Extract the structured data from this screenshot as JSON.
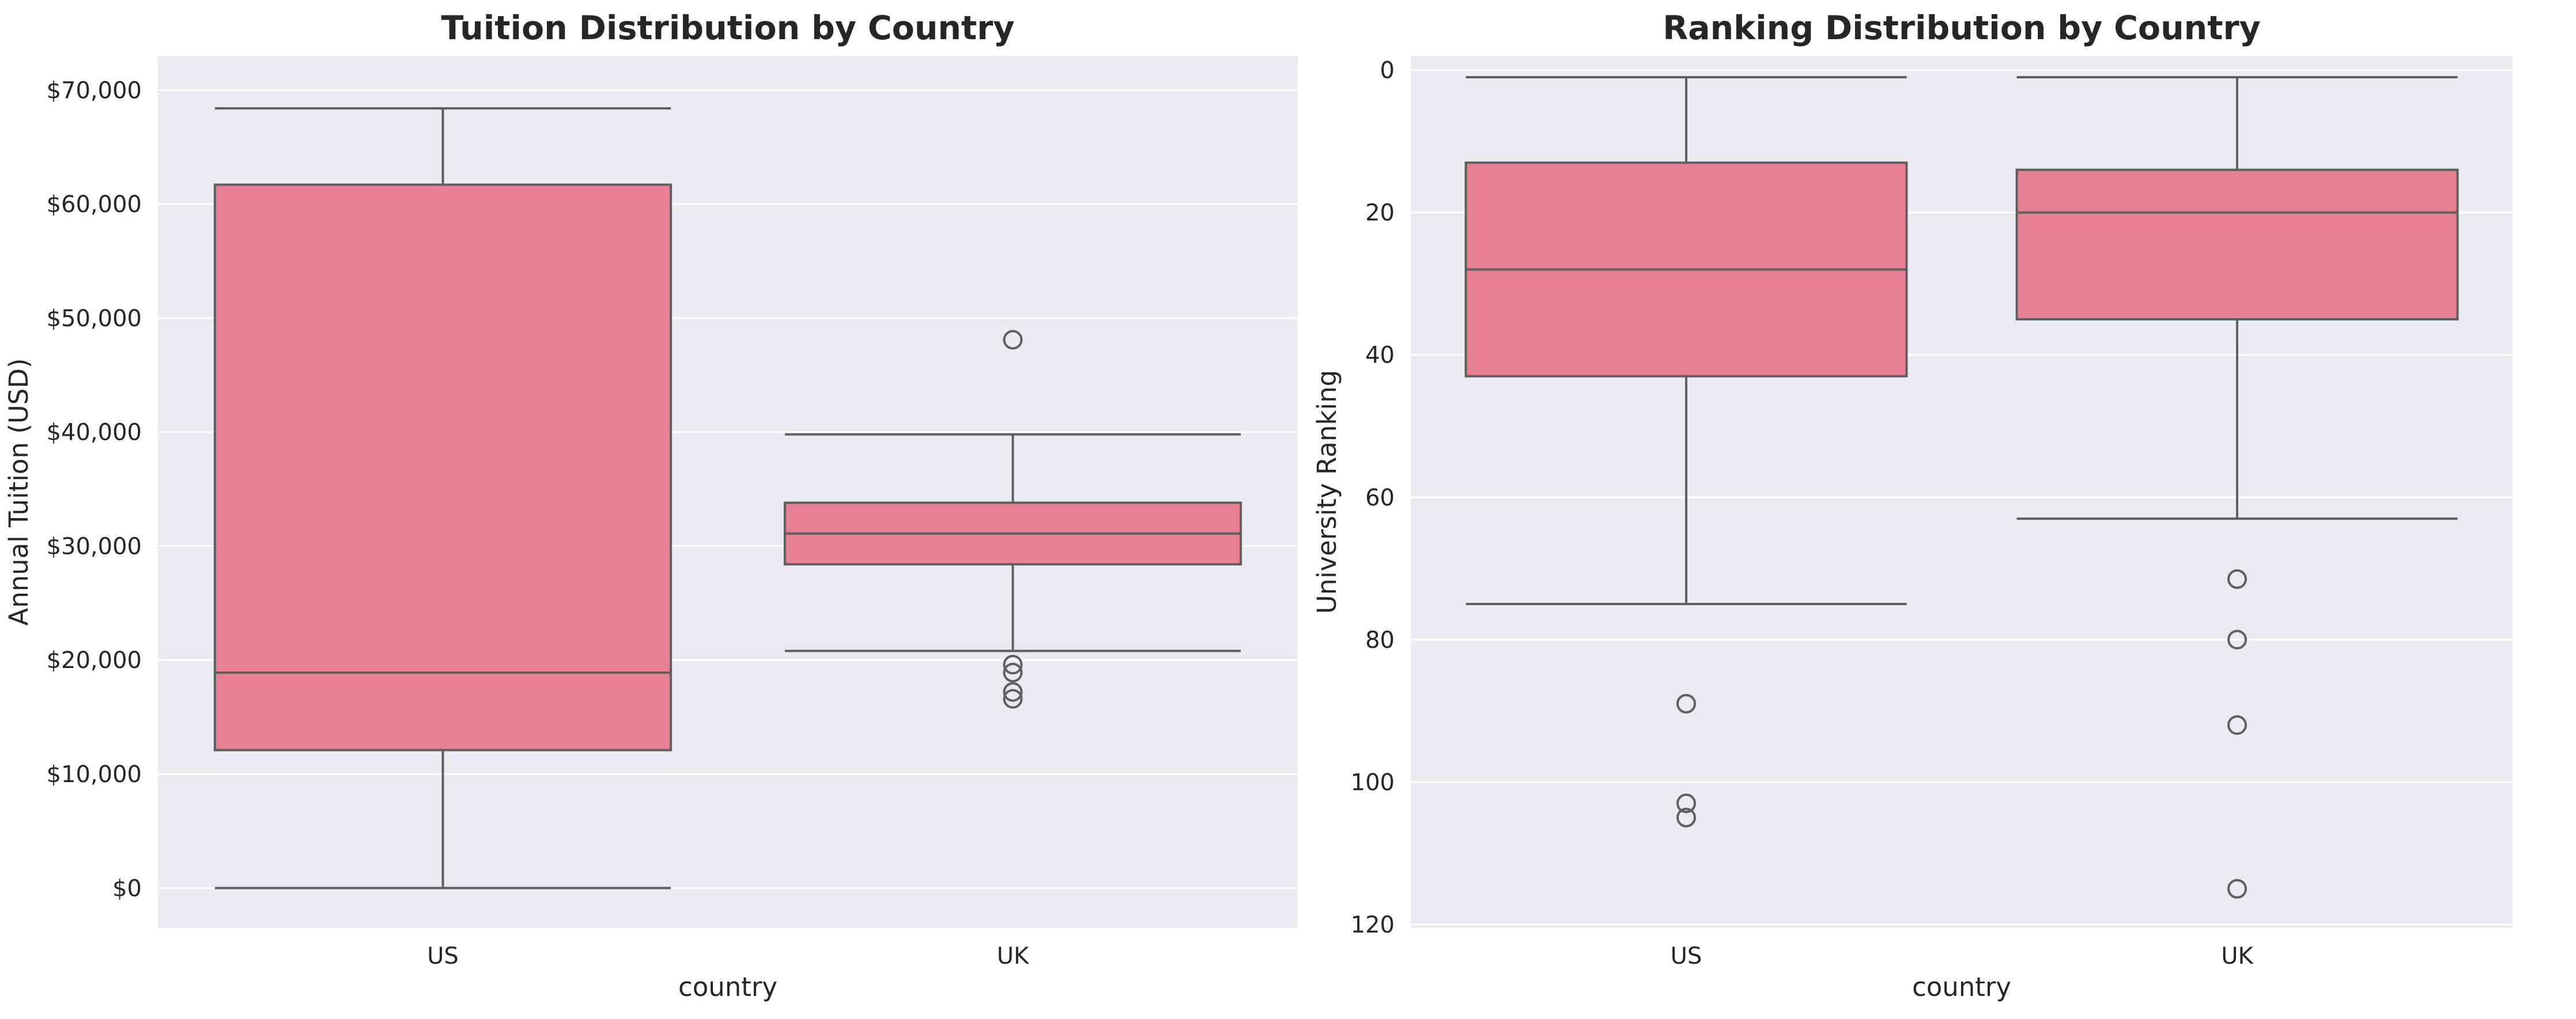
{
  "chart_data": [
    {
      "type": "box",
      "title": "Tuition Distribution by Country",
      "xlabel": "country",
      "ylabel": "Annual Tuition (USD)",
      "categories": [
        "US",
        "UK"
      ],
      "ylim": [
        -3500,
        73000
      ],
      "yticks": [
        0,
        10000,
        20000,
        30000,
        40000,
        50000,
        60000,
        70000
      ],
      "ytick_labels": [
        "$0",
        "$10,000",
        "$20,000",
        "$30,000",
        "$40,000",
        "$50,000",
        "$60,000",
        "$70,000"
      ],
      "inverted": false,
      "grid": true,
      "color": "#e77f92",
      "boxes": [
        {
          "category": "US",
          "whisker_low": 0,
          "q1": 12100,
          "median": 18900,
          "q3": 61700,
          "whisker_high": 68400,
          "outliers": []
        },
        {
          "category": "UK",
          "whisker_low": 20800,
          "q1": 28400,
          "median": 31100,
          "q3": 33800,
          "whisker_high": 39800,
          "outliers": [
            48100,
            19600,
            18900,
            17200,
            16600
          ]
        }
      ]
    },
    {
      "type": "box",
      "title": "Ranking Distribution by Country",
      "xlabel": "country",
      "ylabel": "University Ranking",
      "categories": [
        "US",
        "UK"
      ],
      "ylim": [
        120.5,
        -2
      ],
      "yticks": [
        0,
        20,
        40,
        60,
        80,
        100,
        120
      ],
      "ytick_labels": [
        "0",
        "20",
        "40",
        "60",
        "80",
        "100",
        "120"
      ],
      "inverted": true,
      "grid": true,
      "color": "#e77f92",
      "boxes": [
        {
          "category": "US",
          "whisker_low": 1,
          "q1": 13,
          "median": 28,
          "q3": 43,
          "whisker_high": 75,
          "outliers": [
            89,
            103,
            105
          ]
        },
        {
          "category": "UK",
          "whisker_low": 1,
          "q1": 14,
          "median": 20,
          "q3": 35,
          "whisker_high": 63,
          "outliers": [
            71.5,
            80,
            92,
            115
          ]
        }
      ]
    }
  ]
}
